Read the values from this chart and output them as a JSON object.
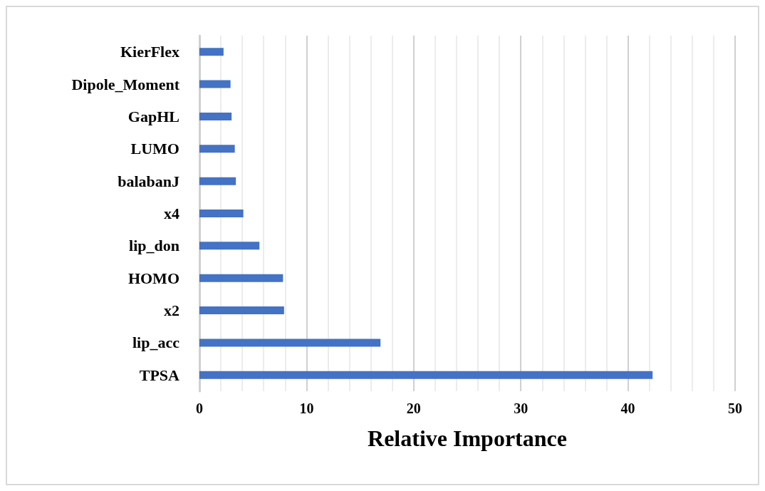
{
  "chart_data": {
    "type": "bar",
    "orientation": "horizontal",
    "xlabel": "Relative Importance",
    "categories": [
      "KierFlex",
      "Dipole_Moment",
      "GapHL",
      "LUMO",
      "balabanJ",
      "x4",
      "lip_don",
      "HOMO",
      "x2",
      "lip_acc",
      "TPSA"
    ],
    "values": [
      2.25,
      2.9,
      3.0,
      3.3,
      3.4,
      4.1,
      5.6,
      7.8,
      7.9,
      16.9,
      42.3
    ],
    "color": "#4472c4",
    "xlim": [
      0,
      50
    ],
    "xticks": [
      0,
      10,
      20,
      30,
      40,
      50
    ],
    "grid": "x"
  }
}
